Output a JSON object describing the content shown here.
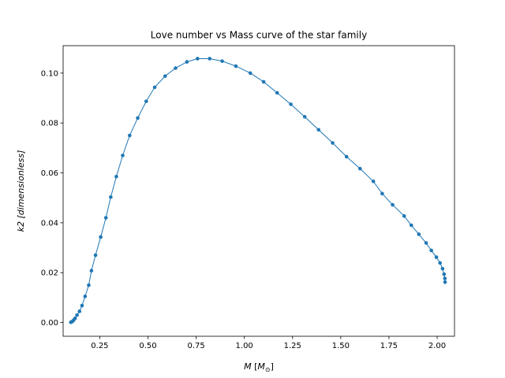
{
  "chart_data": {
    "type": "line",
    "title": "Love number vs Mass curve of the star family",
    "xlabel_var": "M",
    "xlabel_unit_open": " [",
    "xlabel_unit_base": "M",
    "xlabel_unit_sub": "⊙",
    "xlabel_unit_close": "]",
    "ylabel_var": "k2",
    "ylabel_unit": " [dimensionless]",
    "xlim": [
      0.06,
      2.09
    ],
    "ylim": [
      -0.0055,
      0.111
    ],
    "xticks": [
      0.25,
      0.5,
      0.75,
      1.0,
      1.25,
      1.5,
      1.75,
      2.0
    ],
    "xtick_labels": [
      "0.25",
      "0.50",
      "0.75",
      "1.00",
      "1.25",
      "1.50",
      "1.75",
      "2.00"
    ],
    "yticks": [
      0.0,
      0.02,
      0.04,
      0.06,
      0.08,
      0.1
    ],
    "ytick_labels": [
      "0.00",
      "0.02",
      "0.04",
      "0.06",
      "0.08",
      "0.10"
    ],
    "grid": false,
    "legend": "none",
    "color": "#1f77b4",
    "series": [
      {
        "x": [
          0.1,
          0.107,
          0.114,
          0.122,
          0.132,
          0.145,
          0.158,
          0.174,
          0.193,
          0.207,
          0.228,
          0.255,
          0.282,
          0.307,
          0.336,
          0.369,
          0.405,
          0.447,
          0.491,
          0.535,
          0.589,
          0.643,
          0.702,
          0.757,
          0.82,
          0.885,
          0.956,
          1.031,
          1.1,
          1.17,
          1.241,
          1.313,
          1.385,
          1.458,
          1.53,
          1.6,
          1.669,
          1.715,
          1.769,
          1.829,
          1.866,
          1.905,
          1.943,
          1.97,
          1.996,
          2.015,
          2.028,
          2.036,
          2.04,
          2.041
        ],
        "y": [
          0.0001,
          0.0004,
          0.0009,
          0.0017,
          0.003,
          0.0045,
          0.0068,
          0.0105,
          0.015,
          0.0208,
          0.027,
          0.0343,
          0.042,
          0.0503,
          0.0585,
          0.067,
          0.075,
          0.082,
          0.0887,
          0.0943,
          0.0988,
          0.102,
          0.1045,
          0.1058,
          0.1058,
          0.1048,
          0.1028,
          0.1,
          0.0965,
          0.0921,
          0.0875,
          0.0825,
          0.0773,
          0.072,
          0.0665,
          0.0617,
          0.0566,
          0.0517,
          0.0472,
          0.0427,
          0.039,
          0.0354,
          0.0319,
          0.0289,
          0.0262,
          0.0239,
          0.0216,
          0.0194,
          0.0177,
          0.0162
        ]
      }
    ]
  }
}
